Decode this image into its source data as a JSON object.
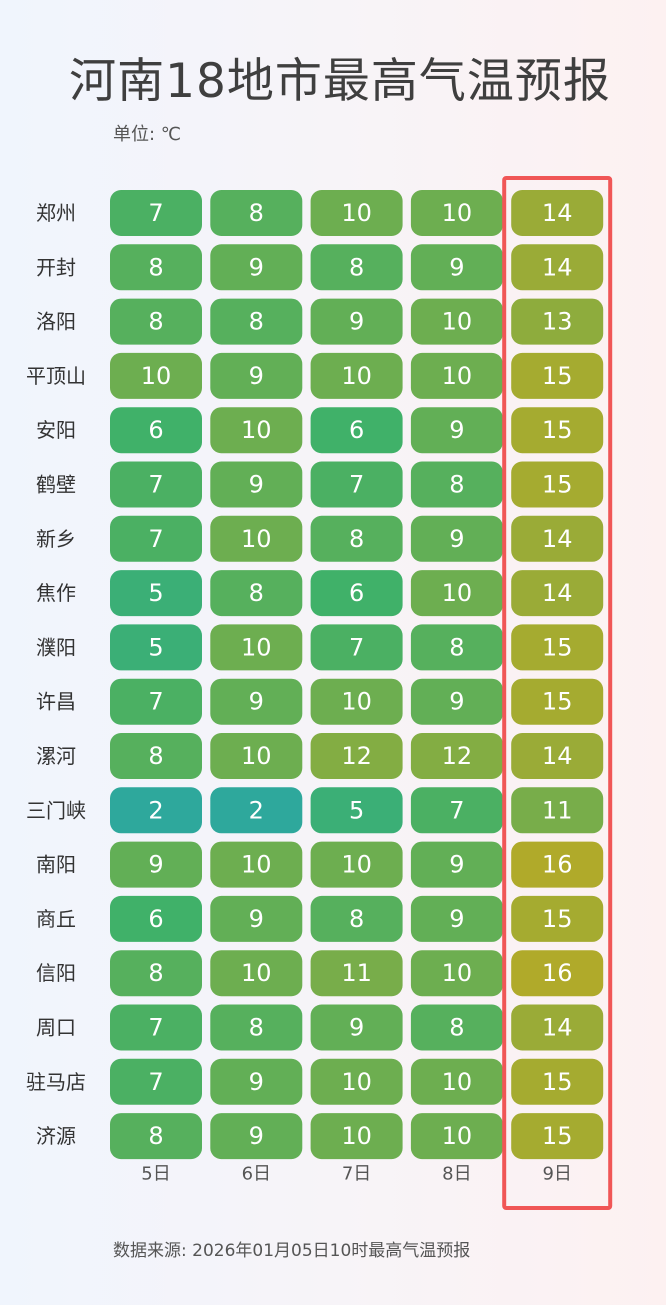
{
  "header": {
    "title": "河南18地市最高气温预报",
    "unit": "单位: ℃"
  },
  "footer": {
    "source": "数据来源: 2026年01月05日10时最高气温预报"
  },
  "highlight": {
    "column": "9日",
    "color": "#f05656"
  },
  "colors": {
    "low": "#2ea89c",
    "mid": "#3fb16a",
    "high": "#b0aa2a"
  },
  "chart_data": {
    "type": "heatmap",
    "title": "河南18地市最高气温预报",
    "columns": [
      "5日",
      "6日",
      "7日",
      "8日",
      "9日"
    ],
    "rows": [
      "郑州",
      "开封",
      "洛阳",
      "平顶山",
      "安阳",
      "鹤壁",
      "新乡",
      "焦作",
      "濮阳",
      "许昌",
      "漯河",
      "三门峡",
      "南阳",
      "商丘",
      "信阳",
      "周口",
      "驻马店",
      "济源"
    ],
    "values": [
      [
        7,
        8,
        10,
        10,
        14
      ],
      [
        8,
        9,
        8,
        9,
        14
      ],
      [
        8,
        8,
        9,
        10,
        13
      ],
      [
        10,
        9,
        10,
        10,
        15
      ],
      [
        6,
        10,
        6,
        9,
        15
      ],
      [
        7,
        9,
        7,
        8,
        15
      ],
      [
        7,
        10,
        8,
        9,
        14
      ],
      [
        5,
        8,
        6,
        10,
        14
      ],
      [
        5,
        10,
        7,
        8,
        15
      ],
      [
        7,
        9,
        10,
        9,
        15
      ],
      [
        8,
        10,
        12,
        12,
        14
      ],
      [
        2,
        2,
        5,
        7,
        11
      ],
      [
        9,
        10,
        10,
        9,
        16
      ],
      [
        6,
        9,
        8,
        9,
        15
      ],
      [
        8,
        10,
        11,
        10,
        16
      ],
      [
        7,
        8,
        9,
        8,
        14
      ],
      [
        7,
        9,
        10,
        10,
        15
      ],
      [
        8,
        9,
        10,
        10,
        15
      ]
    ],
    "value_range": [
      2,
      16
    ],
    "unit": "℃"
  }
}
